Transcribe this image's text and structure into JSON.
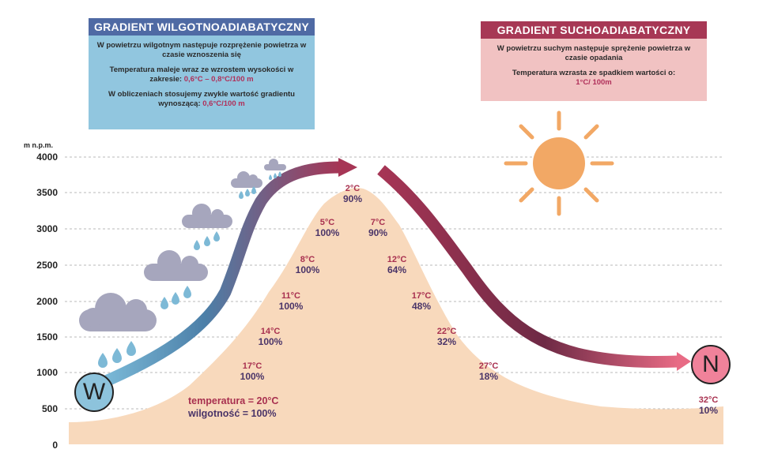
{
  "wet_box": {
    "title": "GRADIENT WILGOTNOADIABATYCZNY",
    "line1": "W powietrzu wilgotnym następuje rozprężenie powietrza w czasie wznoszenia się",
    "line2_text": "Temperatura maleje wraz ze wzrostem wysokości w zakresie: ",
    "line2_value": "0,6°C – 0,8°C/100 m",
    "line3_text": "W obliczeniach stosujemy zwykle wartość gradientu wynoszącą: ",
    "line3_value": "0,6°C/100 m"
  },
  "dry_box": {
    "title": "GRADIENT SUCHOADIABATYCZNY",
    "line1": "W powietrzu suchym następuje sprężenie powietrza w czasie opadania",
    "line2_text": "Temperatura wzrasta ze spadkiem wartości o:",
    "line2_value": "1°C/ 100m"
  },
  "axis": {
    "unit": "m n.p.m.",
    "ticks": [
      "4000",
      "3500",
      "3000",
      "2500",
      "2000",
      "1500",
      "1000",
      "500",
      "0"
    ]
  },
  "base_condition": {
    "temperature": "temperatura = 20°C",
    "humidity": "wilgotność = 100%"
  },
  "windward_labels": [
    {
      "temp": "17°C",
      "hum": "100%"
    },
    {
      "temp": "14°C",
      "hum": "100%"
    },
    {
      "temp": "11°C",
      "hum": "100%"
    },
    {
      "temp": "8°C",
      "hum": "100%"
    },
    {
      "temp": "5°C",
      "hum": "100%"
    }
  ],
  "summit_label": {
    "temp": "2°C",
    "hum": "90%"
  },
  "leeward_labels": [
    {
      "temp": "7°C",
      "hum": "90%"
    },
    {
      "temp": "12°C",
      "hum": "64%"
    },
    {
      "temp": "17°C",
      "hum": "48%"
    },
    {
      "temp": "22°C",
      "hum": "32%"
    },
    {
      "temp": "27°C",
      "hum": "18%"
    },
    {
      "temp": "32°C",
      "hum": "10%"
    }
  ],
  "markers": {
    "west": "W",
    "north": "N"
  },
  "colors": {
    "wet": "#4f6aa4",
    "dry": "#a73855",
    "mountain": "#f8d9bc",
    "sun": "#f2a865"
  }
}
